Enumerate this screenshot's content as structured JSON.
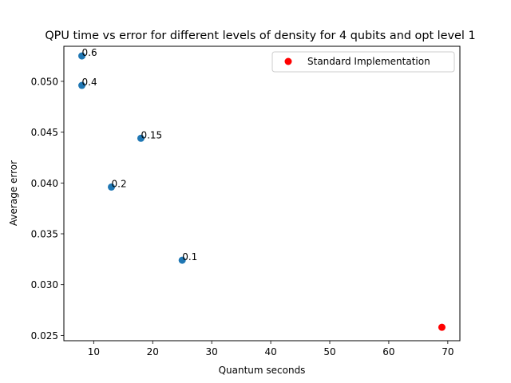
{
  "chart_data": {
    "type": "scatter",
    "title": "QPU time vs error for different levels of density for 4 qubits and opt level 1",
    "xlabel": "Quantum seconds",
    "ylabel": "Average error",
    "xlim": [
      4.95,
      72.05
    ],
    "ylim": [
      0.02448,
      0.05345
    ],
    "xticks": [
      10,
      20,
      30,
      40,
      50,
      60,
      70
    ],
    "yticks": [
      0.025,
      0.03,
      0.035,
      0.04,
      0.045,
      0.05
    ],
    "ytick_labels": [
      "0.025",
      "0.030",
      "0.035",
      "0.040",
      "0.045",
      "0.050"
    ],
    "grid": false,
    "legend_position": "top-right",
    "series": [
      {
        "color": "#1f77b4",
        "points": [
          {
            "x": 8,
            "y": 0.0525,
            "label": "0.6"
          },
          {
            "x": 8,
            "y": 0.0496,
            "label": "0.4"
          },
          {
            "x": 18,
            "y": 0.0444,
            "label": "0.15"
          },
          {
            "x": 13,
            "y": 0.0396,
            "label": "0.2"
          },
          {
            "x": 25,
            "y": 0.0324,
            "label": "0.1"
          }
        ]
      },
      {
        "name": "Standard Implementation",
        "color": "#ff0000",
        "points": [
          {
            "x": 69,
            "y": 0.0258
          }
        ]
      }
    ]
  }
}
